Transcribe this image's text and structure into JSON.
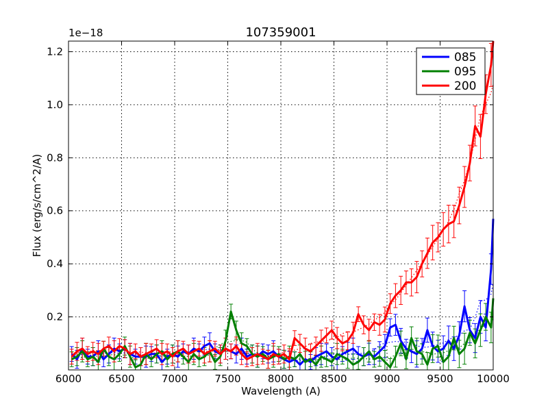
{
  "chart_data": {
    "type": "line",
    "title": "107359001",
    "xlabel": "Wavelength (A)",
    "ylabel": "Flux (erg/s/cm^2/A)",
    "y_multiplier": "1e−18",
    "xlim": [
      6000,
      10000
    ],
    "ylim": [
      0.0,
      1.24
    ],
    "xticks": [
      6000,
      6500,
      7000,
      7500,
      8000,
      8500,
      9000,
      9500,
      10000
    ],
    "xtick_labels": [
      "6000",
      "6500",
      "7000",
      "7500",
      "8000",
      "8500",
      "9000",
      "9500",
      "10000"
    ],
    "yticks": [
      0.2,
      0.4,
      0.6,
      0.8,
      1.0,
      1.2
    ],
    "ytick_labels": [
      "0.2",
      "0.4",
      "0.6",
      "0.8",
      "1.0",
      "1.2"
    ],
    "grid": true,
    "legend_position": "top-right",
    "series": [
      {
        "name": "085",
        "color": "#0000ff",
        "x": [
          6030,
          6080,
          6130,
          6180,
          6230,
          6280,
          6330,
          6380,
          6430,
          6480,
          6530,
          6580,
          6630,
          6680,
          6730,
          6780,
          6830,
          6880,
          6930,
          6980,
          7030,
          7080,
          7130,
          7180,
          7230,
          7280,
          7330,
          7380,
          7430,
          7480,
          7530,
          7580,
          7630,
          7680,
          7730,
          7780,
          7830,
          7880,
          7930,
          7980,
          8030,
          8080,
          8130,
          8180,
          8230,
          8280,
          8330,
          8380,
          8430,
          8480,
          8530,
          8580,
          8630,
          8680,
          8730,
          8780,
          8830,
          8880,
          8930,
          8980,
          9030,
          9080,
          9130,
          9180,
          9230,
          9280,
          9330,
          9380,
          9430,
          9480,
          9530,
          9580,
          9630,
          9680,
          9730,
          9780,
          9830,
          9880,
          9930,
          9980,
          10000
        ],
        "y": [
          0.06,
          0.04,
          0.08,
          0.05,
          0.05,
          0.07,
          0.04,
          0.06,
          0.08,
          0.07,
          0.08,
          0.06,
          0.05,
          0.05,
          0.05,
          0.06,
          0.06,
          0.03,
          0.05,
          0.06,
          0.05,
          0.07,
          0.06,
          0.08,
          0.07,
          0.09,
          0.1,
          0.07,
          0.06,
          0.08,
          0.07,
          0.06,
          0.08,
          0.05,
          0.06,
          0.05,
          0.07,
          0.06,
          0.07,
          0.05,
          0.04,
          0.03,
          0.04,
          0.02,
          0.04,
          0.03,
          0.05,
          0.06,
          0.07,
          0.05,
          0.04,
          0.06,
          0.07,
          0.08,
          0.06,
          0.05,
          0.06,
          0.05,
          0.07,
          0.09,
          0.16,
          0.17,
          0.11,
          0.08,
          0.07,
          0.06,
          0.08,
          0.15,
          0.09,
          0.07,
          0.08,
          0.11,
          0.08,
          0.13,
          0.24,
          0.15,
          0.12,
          0.2,
          0.16,
          0.38,
          0.57
        ]
      },
      {
        "name": "095",
        "color": "#007f00",
        "x": [
          6030,
          6080,
          6130,
          6180,
          6230,
          6280,
          6330,
          6380,
          6430,
          6480,
          6530,
          6580,
          6630,
          6680,
          6730,
          6780,
          6830,
          6880,
          6930,
          6980,
          7030,
          7080,
          7130,
          7180,
          7230,
          7280,
          7330,
          7380,
          7430,
          7480,
          7530,
          7580,
          7630,
          7680,
          7730,
          7780,
          7830,
          7880,
          7930,
          7980,
          8030,
          8080,
          8130,
          8180,
          8230,
          8280,
          8330,
          8380,
          8430,
          8480,
          8530,
          8580,
          8630,
          8680,
          8730,
          8780,
          8830,
          8880,
          8930,
          8980,
          9030,
          9080,
          9130,
          9180,
          9230,
          9280,
          9330,
          9380,
          9430,
          9480,
          9530,
          9580,
          9630,
          9680,
          9730,
          9780,
          9830,
          9880,
          9930,
          9980,
          10000
        ],
        "y": [
          0.04,
          0.05,
          0.07,
          0.04,
          0.05,
          0.03,
          0.08,
          0.05,
          0.04,
          0.06,
          0.09,
          0.05,
          0.01,
          0.02,
          0.06,
          0.04,
          0.06,
          0.07,
          0.04,
          0.06,
          0.07,
          0.05,
          0.03,
          0.06,
          0.04,
          0.05,
          0.07,
          0.03,
          0.05,
          0.11,
          0.22,
          0.15,
          0.1,
          0.09,
          0.06,
          0.05,
          0.06,
          0.04,
          0.05,
          0.06,
          0.04,
          0.05,
          0.04,
          0.06,
          0.03,
          0.04,
          0.02,
          0.05,
          0.04,
          0.03,
          0.06,
          0.05,
          0.04,
          0.02,
          0.03,
          0.05,
          0.07,
          0.04,
          0.05,
          0.03,
          0.01,
          0.05,
          0.1,
          0.04,
          0.12,
          0.07,
          0.06,
          0.02,
          0.08,
          0.09,
          0.03,
          0.05,
          0.12,
          0.06,
          0.08,
          0.14,
          0.1,
          0.15,
          0.2,
          0.16,
          0.27
        ]
      },
      {
        "name": "200",
        "color": "#ff0000",
        "x": [
          6030,
          6080,
          6130,
          6180,
          6230,
          6280,
          6330,
          6380,
          6430,
          6480,
          6530,
          6580,
          6630,
          6680,
          6730,
          6780,
          6830,
          6880,
          6930,
          6980,
          7030,
          7080,
          7130,
          7180,
          7230,
          7280,
          7330,
          7380,
          7430,
          7480,
          7530,
          7580,
          7630,
          7680,
          7730,
          7780,
          7830,
          7880,
          7930,
          7980,
          8030,
          8080,
          8130,
          8180,
          8230,
          8280,
          8330,
          8380,
          8430,
          8480,
          8530,
          8580,
          8630,
          8680,
          8730,
          8780,
          8830,
          8880,
          8930,
          8980,
          9030,
          9080,
          9130,
          9180,
          9230,
          9280,
          9330,
          9380,
          9430,
          9480,
          9530,
          9580,
          9630,
          9680,
          9730,
          9780,
          9830,
          9880,
          9930,
          9980,
          10000
        ],
        "y": [
          0.05,
          0.07,
          0.08,
          0.06,
          0.07,
          0.06,
          0.08,
          0.09,
          0.07,
          0.09,
          0.08,
          0.06,
          0.07,
          0.05,
          0.06,
          0.07,
          0.08,
          0.06,
          0.07,
          0.05,
          0.07,
          0.08,
          0.06,
          0.07,
          0.08,
          0.06,
          0.07,
          0.08,
          0.06,
          0.08,
          0.07,
          0.09,
          0.06,
          0.04,
          0.05,
          0.06,
          0.05,
          0.04,
          0.06,
          0.05,
          0.06,
          0.04,
          0.12,
          0.1,
          0.08,
          0.07,
          0.09,
          0.11,
          0.13,
          0.15,
          0.12,
          0.1,
          0.11,
          0.14,
          0.21,
          0.17,
          0.15,
          0.18,
          0.17,
          0.19,
          0.25,
          0.28,
          0.3,
          0.33,
          0.33,
          0.35,
          0.4,
          0.44,
          0.48,
          0.5,
          0.53,
          0.55,
          0.56,
          0.62,
          0.69,
          0.78,
          0.92,
          0.88,
          1.04,
          1.15,
          1.24
        ]
      }
    ]
  }
}
